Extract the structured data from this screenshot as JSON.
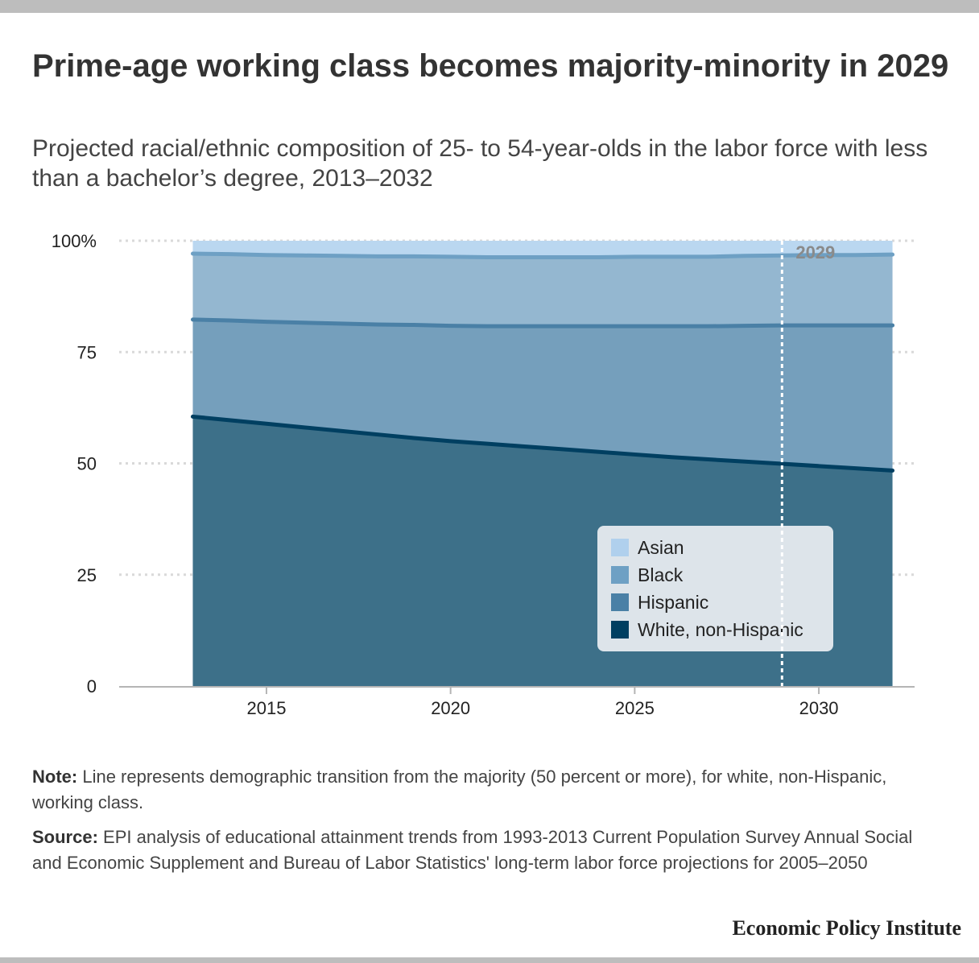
{
  "title": "Prime-age working class becomes majority-minority in 2029",
  "subtitle": "Projected racial/ethnic composition of 25- to 54-year-olds in the labor force with less than a bachelor’s degree, 2013–2032",
  "note": {
    "label": "Note:",
    "text": " Line represents demographic transition from the majority (50 percent or more), for white, non-Hispanic, working class."
  },
  "source": {
    "label": "Source:",
    "text": " EPI analysis of educational attainment trends from 1993-2013 Current Population Survey Annual Social and Economic Supplement and Bureau of Labor Statistics' long-term labor force projections for 2005–2050"
  },
  "brand": "Economic Policy Institute",
  "chart_data": {
    "type": "area",
    "stacked": true,
    "x": [
      2013,
      2014,
      2015,
      2016,
      2017,
      2018,
      2019,
      2020,
      2021,
      2022,
      2023,
      2024,
      2025,
      2026,
      2027,
      2028,
      2029,
      2030,
      2031,
      2032
    ],
    "series": [
      {
        "name": "White, non-Hispanic",
        "color": "#003f61",
        "fill": "#3d7089",
        "values": [
          60.5,
          59.7,
          58.9,
          58.1,
          57.3,
          56.5,
          55.7,
          55.0,
          54.4,
          53.8,
          53.2,
          52.6,
          52.0,
          51.4,
          50.9,
          50.4,
          49.9,
          49.4,
          48.9,
          48.4
        ]
      },
      {
        "name": "Hispanic",
        "color": "#4a80a6",
        "fill": "#759fbc",
        "values": [
          21.8,
          22.4,
          22.9,
          23.5,
          24.1,
          24.7,
          25.4,
          25.9,
          26.4,
          27.0,
          27.6,
          28.2,
          28.8,
          29.4,
          29.9,
          30.5,
          31.1,
          31.6,
          32.1,
          32.6
        ]
      },
      {
        "name": "Black",
        "color": "#6ea0c4",
        "fill": "#94b7d0",
        "values": [
          14.8,
          14.9,
          15.0,
          15.1,
          15.2,
          15.3,
          15.4,
          15.5,
          15.5,
          15.5,
          15.5,
          15.5,
          15.6,
          15.6,
          15.6,
          15.7,
          15.7,
          15.8,
          15.8,
          15.9
        ]
      },
      {
        "name": "Asian",
        "color": "#b0d0ed",
        "fill": "#bad7f0",
        "values": [
          2.9,
          3.0,
          3.2,
          3.3,
          3.4,
          3.5,
          3.5,
          3.6,
          3.7,
          3.7,
          3.7,
          3.7,
          3.6,
          3.6,
          3.6,
          3.4,
          3.3,
          3.2,
          3.2,
          3.1
        ]
      }
    ],
    "legend_order": [
      "Asian",
      "Black",
      "Hispanic",
      "White, non-Hispanic"
    ],
    "legend_position": "bottom-right",
    "y_ticks": [
      {
        "value": 0,
        "label": "0"
      },
      {
        "value": 25,
        "label": "25"
      },
      {
        "value": 50,
        "label": "50"
      },
      {
        "value": 75,
        "label": "75"
      },
      {
        "value": 100,
        "label": "100%"
      }
    ],
    "x_ticks": [
      {
        "value": 2015,
        "label": "2015"
      },
      {
        "value": 2020,
        "label": "2020"
      },
      {
        "value": 2025,
        "label": "2025"
      },
      {
        "value": 2030,
        "label": "2030"
      }
    ],
    "xlim": [
      2011,
      2032.6
    ],
    "ylim": [
      0,
      100
    ],
    "grid": true,
    "annotation": {
      "x": 2029,
      "label": "2029"
    }
  }
}
